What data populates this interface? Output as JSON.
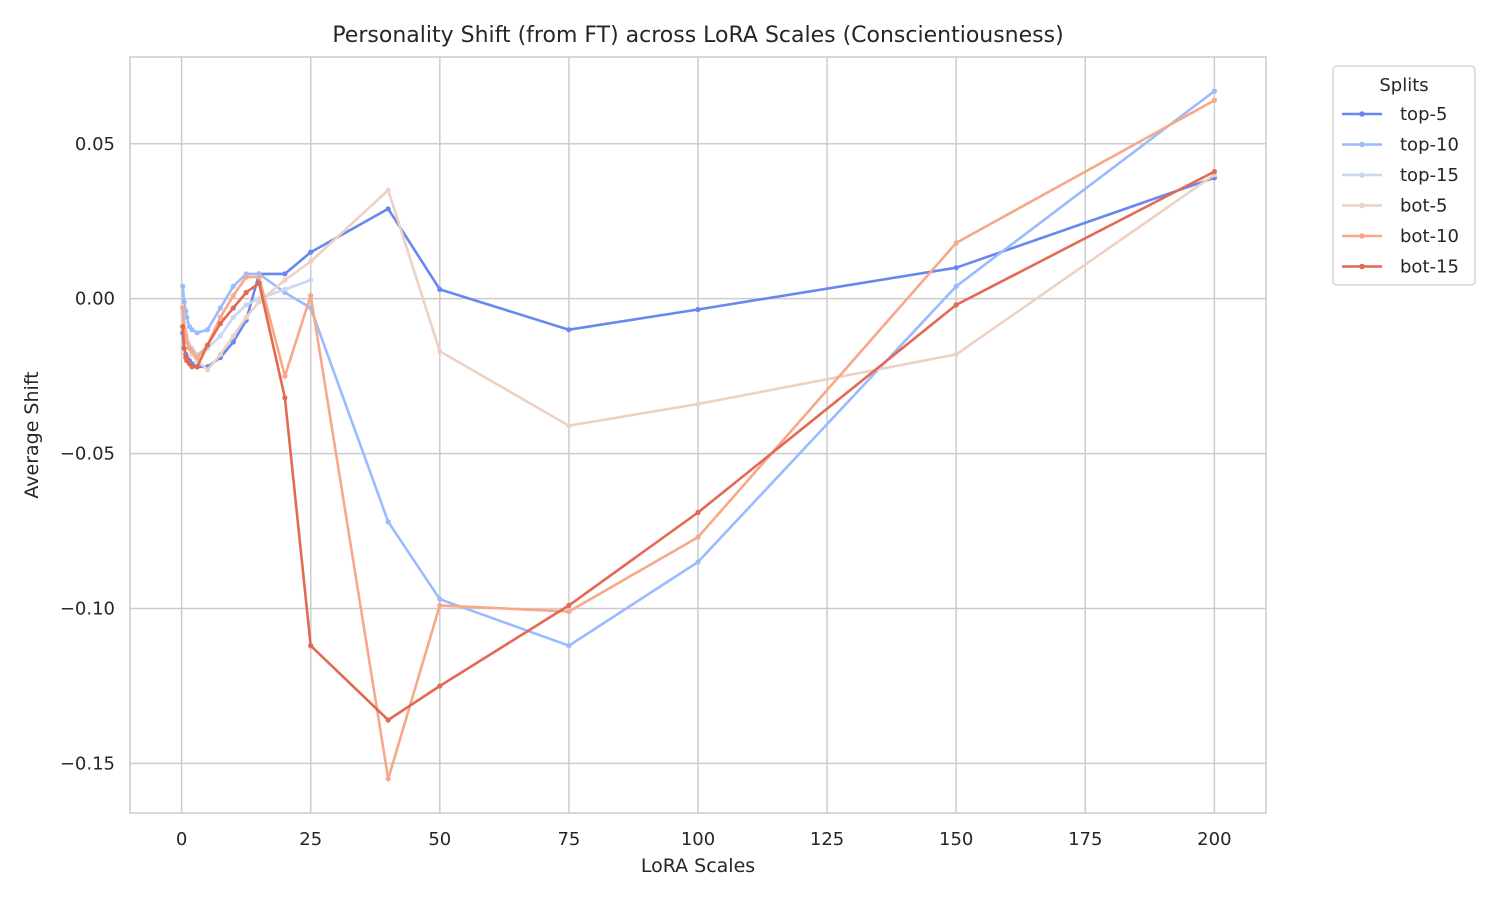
{
  "chart_data": {
    "type": "line",
    "title": "Personality Shift (from FT) across LoRA Scales (Conscientiousness)",
    "xlabel": "LoRA Scales",
    "ylabel": "Average Shift",
    "xlim": [
      -10,
      210
    ],
    "ylim": [
      -0.166,
      0.078
    ],
    "xticks": [
      0,
      25,
      50,
      75,
      100,
      125,
      150,
      175,
      200
    ],
    "xtick_labels": [
      "0",
      "25",
      "50",
      "75",
      "100",
      "125",
      "150",
      "175",
      "200"
    ],
    "yticks": [
      0.05,
      0.0,
      -0.05,
      -0.1,
      -0.15
    ],
    "ytick_labels": [
      "0.05",
      "0.00",
      "−0.05",
      "−0.10",
      "−0.15"
    ],
    "grid": true,
    "legend": {
      "title": "Splits",
      "placement": "outside-top-right"
    },
    "series": [
      {
        "name": "top-5",
        "color": "#6788ee",
        "points": [
          [
            0.2,
            -0.011
          ],
          [
            0.5,
            -0.016
          ],
          [
            0.8,
            -0.018
          ],
          [
            1,
            -0.019
          ],
          [
            1.5,
            -0.02
          ],
          [
            2,
            -0.021
          ],
          [
            3,
            -0.022
          ],
          [
            5,
            -0.022
          ],
          [
            7.5,
            -0.019
          ],
          [
            10,
            -0.014
          ],
          [
            12.5,
            -0.007
          ],
          [
            15,
            0.008
          ],
          [
            20,
            0.008
          ],
          [
            25,
            0.015
          ],
          [
            40,
            0.029
          ],
          [
            50,
            0.003
          ],
          [
            75,
            -0.01
          ],
          [
            100,
            -0.0035
          ],
          [
            150,
            0.01
          ],
          [
            200,
            0.039
          ]
        ]
      },
      {
        "name": "top-10",
        "color": "#9abbff",
        "points": [
          [
            0.2,
            0.004
          ],
          [
            0.5,
            -0.001
          ],
          [
            0.8,
            -0.004
          ],
          [
            1,
            -0.006
          ],
          [
            1.5,
            -0.009
          ],
          [
            2,
            -0.01
          ],
          [
            3,
            -0.011
          ],
          [
            5,
            -0.01
          ],
          [
            7.5,
            -0.003
          ],
          [
            10,
            0.004
          ],
          [
            12.5,
            0.008
          ],
          [
            15,
            0.008
          ],
          [
            20,
            0.002
          ],
          [
            25,
            -0.003
          ],
          [
            40,
            -0.072
          ],
          [
            50,
            -0.097
          ],
          [
            75,
            -0.112
          ],
          [
            100,
            -0.085
          ],
          [
            150,
            0.004
          ],
          [
            200,
            0.067
          ]
        ]
      },
      {
        "name": "top-15",
        "color": "#c9d7f0",
        "points": [
          [
            0.2,
            -0.005
          ],
          [
            0.5,
            -0.01
          ],
          [
            1,
            -0.013
          ],
          [
            2,
            -0.016
          ],
          [
            3,
            -0.018
          ],
          [
            5,
            -0.016
          ],
          [
            7.5,
            -0.012
          ],
          [
            10,
            -0.006
          ],
          [
            12.5,
            -0.002
          ],
          [
            15,
            0.0
          ],
          [
            20,
            0.003
          ],
          [
            25,
            0.006
          ]
        ]
      },
      {
        "name": "bot-5",
        "color": "#edd1c2",
        "points": [
          [
            0.2,
            -0.003
          ],
          [
            0.5,
            -0.008
          ],
          [
            0.8,
            -0.011
          ],
          [
            1,
            -0.013
          ],
          [
            1.5,
            -0.016
          ],
          [
            2,
            -0.018
          ],
          [
            3,
            -0.02
          ],
          [
            5,
            -0.023
          ],
          [
            7.5,
            -0.018
          ],
          [
            10,
            -0.012
          ],
          [
            12.5,
            -0.006
          ],
          [
            15,
            -0.001
          ],
          [
            20,
            0.006
          ],
          [
            25,
            0.012
          ],
          [
            40,
            0.035
          ],
          [
            50,
            -0.017
          ],
          [
            75,
            -0.041
          ],
          [
            100,
            -0.034
          ],
          [
            150,
            -0.018
          ],
          [
            200,
            0.04
          ]
        ]
      },
      {
        "name": "bot-10",
        "color": "#f7a889",
        "points": [
          [
            0.2,
            -0.003
          ],
          [
            0.5,
            -0.01
          ],
          [
            0.8,
            -0.012
          ],
          [
            1,
            -0.014
          ],
          [
            1.5,
            -0.016
          ],
          [
            2,
            -0.017
          ],
          [
            3,
            -0.019
          ],
          [
            5,
            -0.015
          ],
          [
            7.5,
            -0.006
          ],
          [
            10,
            0.001
          ],
          [
            12.5,
            0.007
          ],
          [
            15,
            0.007
          ],
          [
            20,
            -0.025
          ],
          [
            25,
            0.001
          ],
          [
            40,
            -0.155
          ],
          [
            50,
            -0.099
          ],
          [
            75,
            -0.101
          ],
          [
            100,
            -0.077
          ],
          [
            150,
            0.018
          ],
          [
            200,
            0.064
          ]
        ]
      },
      {
        "name": "bot-15",
        "color": "#e26952",
        "points": [
          [
            0.2,
            -0.009
          ],
          [
            0.5,
            -0.016
          ],
          [
            0.8,
            -0.019
          ],
          [
            1,
            -0.02
          ],
          [
            1.5,
            -0.021
          ],
          [
            2,
            -0.022
          ],
          [
            3,
            -0.022
          ],
          [
            5,
            -0.015
          ],
          [
            7.5,
            -0.008
          ],
          [
            10,
            -0.003
          ],
          [
            12.5,
            0.002
          ],
          [
            15,
            0.005
          ],
          [
            20,
            -0.032
          ],
          [
            25,
            -0.112
          ],
          [
            40,
            -0.136
          ],
          [
            50,
            -0.125
          ],
          [
            75,
            -0.099
          ],
          [
            100,
            -0.069
          ],
          [
            150,
            -0.002
          ],
          [
            200,
            0.041
          ]
        ]
      }
    ]
  }
}
